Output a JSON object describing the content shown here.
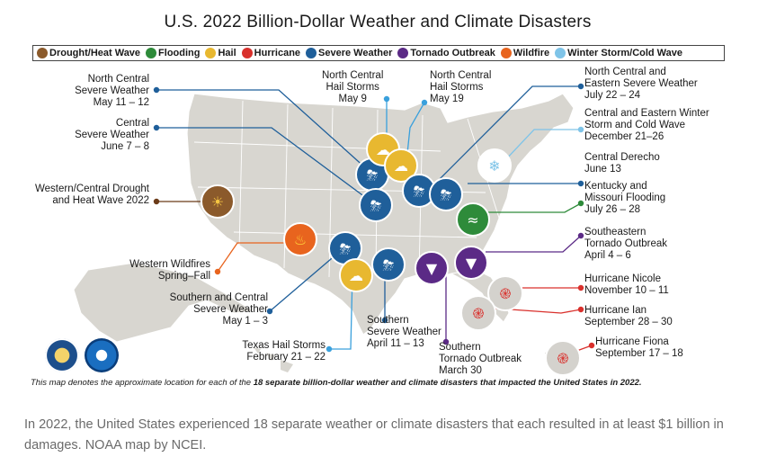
{
  "title": "U.S. 2022 Billion-Dollar Weather and Climate Disasters",
  "legend": [
    {
      "label": "Drought/Heat Wave",
      "icon": "drought-icon",
      "color": "#8b5a2b"
    },
    {
      "label": "Flooding",
      "icon": "flooding-icon",
      "color": "#2e8b3a"
    },
    {
      "label": "Hail",
      "icon": "hail-icon",
      "color": "#e8b830"
    },
    {
      "label": "Hurricane",
      "icon": "hurricane-icon",
      "color": "#d9302c"
    },
    {
      "label": "Severe Weather",
      "icon": "severe-weather-icon",
      "color": "#1f5f9a"
    },
    {
      "label": "Tornado Outbreak",
      "icon": "tornado-icon",
      "color": "#5b2a86"
    },
    {
      "label": "Wildfire",
      "icon": "wildfire-icon",
      "color": "#e8641e"
    },
    {
      "label": "Winter Storm/Cold Wave",
      "icon": "winter-storm-icon",
      "color": "#7fc4e8"
    }
  ],
  "events": {
    "nc_severe": "North Central\nSevere Weather\nMay 11 – 12",
    "c_severe": "Central\nSevere Weather\nJune 7 – 8",
    "drought": "Western/Central Drought\nand Heat Wave 2022",
    "wildfires": "Western Wildfires\nSpring–Fall",
    "sc_severe": "Southern and Central\nSevere Weather\nMay 1 – 3",
    "tx_hail": "Texas Hail Storms\nFebruary 21 – 22",
    "nc_hail_9": "North Central\nHail Storms\nMay 9",
    "nc_hail_19": "North Central\nHail Storms\nMay 19",
    "nce_severe": "North Central and\nEastern Severe Weather\nJuly 22 – 24",
    "winter": "Central and Eastern Winter\nStorm and Cold Wave\nDecember 21–26",
    "derecho": "Central Derecho\nJune 13",
    "ky_flood": "Kentucky and\nMissouri Flooding\nJuly 26 – 28",
    "se_tornado": "Southeastern\nTornado Outbreak\nApril 4 – 6",
    "nicole": "Hurricane Nicole\nNovember 10 – 11",
    "ian": "Hurricane Ian\nSeptember 28 – 30",
    "fiona": "Hurricane Fiona\nSeptember 17 – 18",
    "s_severe": "Southern\nSevere Weather\nApril 11 – 13",
    "s_tornado": "Southern\nTornado Outbreak\nMarch 30"
  },
  "footer": {
    "prefix": "This map denotes the approximate location for each of the ",
    "bold": "18 separate billion-dollar weather and climate disasters that impacted the United States in 2022."
  },
  "caption": "In 2022, the United States experienced 18 separate weather or climate disasters that each resulted in at least $1 billion in damages. NOAA map by NCEI."
}
